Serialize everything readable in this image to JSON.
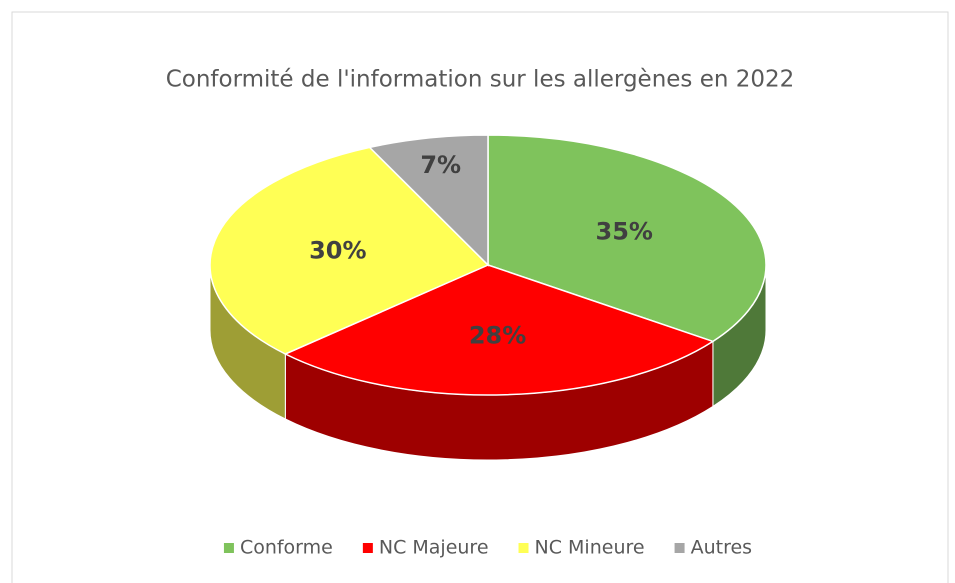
{
  "chart_data": {
    "type": "pie",
    "title": "Conformité de l'information sur les allergènes en 2022",
    "categories": [
      "Conforme",
      "NC Majeure",
      "NC Mineure",
      "Autres"
    ],
    "values": [
      35,
      28,
      30,
      7
    ],
    "value_labels": [
      "35%",
      "28%",
      "30%",
      "7%"
    ],
    "colors": [
      "#7fc35c",
      "#ff0000",
      "#ffff55",
      "#a6a6a6"
    ],
    "legend": "bottom"
  }
}
